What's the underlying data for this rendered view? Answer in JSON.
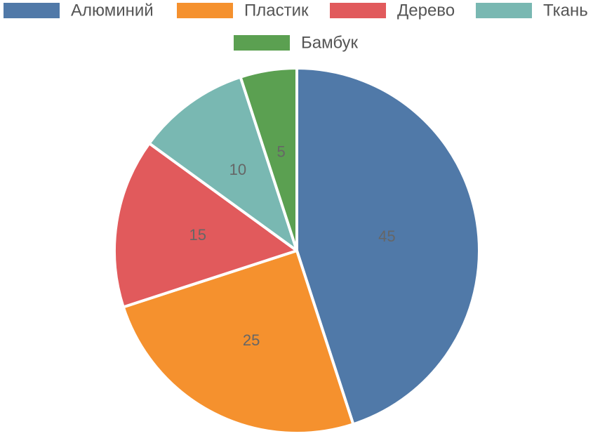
{
  "chart_data": {
    "type": "pie",
    "title": "",
    "legend_position": "top",
    "categories": [
      "Алюминий",
      "Пластик",
      "Дерево",
      "Ткань",
      "Бамбук"
    ],
    "values": [
      45,
      25,
      15,
      10,
      5
    ],
    "colors": [
      "#5079a8",
      "#f5912e",
      "#e15a5c",
      "#79b8b2",
      "#5ba051"
    ],
    "start_angle": "top, clockwise"
  }
}
